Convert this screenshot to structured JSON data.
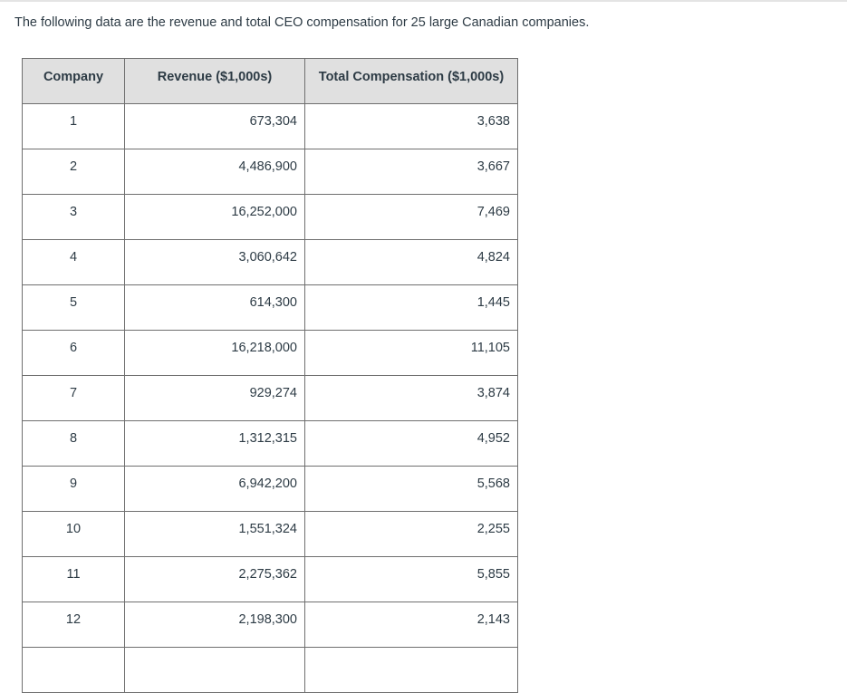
{
  "page": {
    "intro": "The following data are the revenue and total CEO compensation for 25 large Canadian companies."
  },
  "colors": {
    "text": "#2d3b45",
    "table_header_bg": "#e0e0e0",
    "table_border": "#6f6f6f",
    "top_divider": "#e4e4e4"
  },
  "table": {
    "headers": [
      "Company",
      "Revenue ($1,000s)",
      "Total Compensation ($1,000s)"
    ],
    "rows": [
      {
        "company": "1",
        "revenue": "673,304",
        "compensation": "3,638"
      },
      {
        "company": "2",
        "revenue": "4,486,900",
        "compensation": "3,667"
      },
      {
        "company": "3",
        "revenue": "16,252,000",
        "compensation": "7,469"
      },
      {
        "company": "4",
        "revenue": "3,060,642",
        "compensation": "4,824"
      },
      {
        "company": "5",
        "revenue": "614,300",
        "compensation": "1,445"
      },
      {
        "company": "6",
        "revenue": "16,218,000",
        "compensation": "11,105"
      },
      {
        "company": "7",
        "revenue": "929,274",
        "compensation": "3,874"
      },
      {
        "company": "8",
        "revenue": "1,312,315",
        "compensation": "4,952"
      },
      {
        "company": "9",
        "revenue": "6,942,200",
        "compensation": "5,568"
      },
      {
        "company": "10",
        "revenue": "1,551,324",
        "compensation": "2,255"
      },
      {
        "company": "11",
        "revenue": "2,275,362",
        "compensation": "5,855"
      },
      {
        "company": "12",
        "revenue": "2,198,300",
        "compensation": "2,143"
      },
      {
        "company": "",
        "revenue": "",
        "compensation": ""
      }
    ]
  }
}
